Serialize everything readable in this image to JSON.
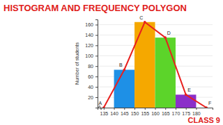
{
  "chart_data": {
    "type": "histogram",
    "title": "HISTOGRAM AND FREQUENCY POLYGON",
    "annotation": "CLASS 9",
    "y_label": "Number of students",
    "bins": [
      140,
      150,
      160,
      170,
      180
    ],
    "values": [
      73,
      165,
      135,
      25
    ],
    "colors": [
      "#1e90e6",
      "#f5a800",
      "#5cd42a",
      "#8b2fc9"
    ],
    "polygon": {
      "x": [
        135,
        145,
        155,
        165,
        175,
        185
      ],
      "values": [
        0,
        73,
        165,
        135,
        25,
        0
      ],
      "labels": [
        "A",
        "B",
        "C",
        "D",
        "E",
        "F"
      ],
      "color": "#e8201e",
      "marker": "circle"
    },
    "xlim": [
      132,
      188
    ],
    "xticks": [
      135,
      140,
      145,
      150,
      155,
      160,
      165,
      170,
      175,
      180
    ],
    "ylim": [
      0,
      170
    ],
    "yticks": [
      20,
      40,
      60,
      80,
      100,
      120,
      140,
      160
    ],
    "grid": true
  }
}
